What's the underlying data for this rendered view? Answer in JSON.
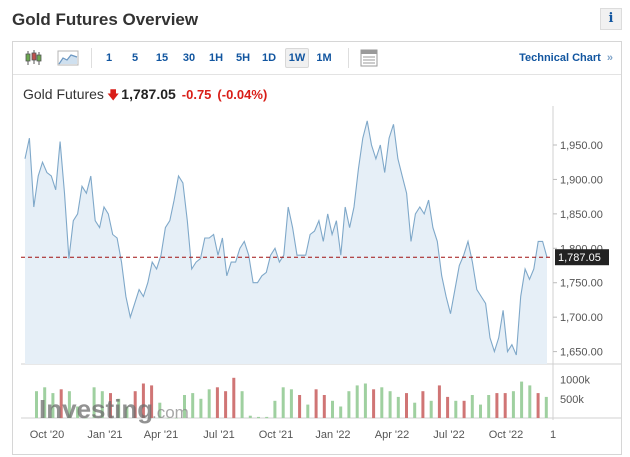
{
  "header": {
    "title": "Gold Futures Overview",
    "info_label": "i"
  },
  "toolbar": {
    "candles_icon": "candlestick-icon",
    "area_icon": "area-chart-icon",
    "intervals": [
      "1",
      "5",
      "15",
      "30",
      "1H",
      "5H",
      "1D",
      "1W",
      "1M"
    ],
    "active_interval": "1W",
    "table_icon": "table-icon",
    "technical_chart_label": "Technical Chart",
    "technical_chart_arrow": "»"
  },
  "quote": {
    "name": "Gold Futures",
    "direction_icon": "down-arrow-icon",
    "price": "1,787.05",
    "change": "-0.75",
    "change_pct": "(-0.04%)",
    "down_color": "#d91e18"
  },
  "chart_data": {
    "type": "area",
    "y_ticks": [
      "1,950.00",
      "1,900.00",
      "1,850.00",
      "1,800.00",
      "1,750.00",
      "1,700.00",
      "1,650.00"
    ],
    "y_tick_values": [
      1950,
      1900,
      1850,
      1800,
      1750,
      1700,
      1650
    ],
    "ylim": [
      1632,
      1995
    ],
    "last_price": 1787.05,
    "last_price_label": "1,787.05",
    "x_tick_labels": [
      "Oct '20",
      "Jan '21",
      "Apr '21",
      "Jul '21",
      "Oct '21",
      "Jan '22",
      "Apr '22",
      "Jul '22",
      "Oct '22",
      "1"
    ],
    "line_color": "#7fa8c9",
    "fill_color": "#e6eff7",
    "values": [
      1930,
      1960,
      1860,
      1905,
      1925,
      1910,
      1905,
      1885,
      1955,
      1880,
      1785,
      1840,
      1850,
      1890,
      1880,
      1905,
      1840,
      1830,
      1860,
      1850,
      1820,
      1815,
      1780,
      1730,
      1700,
      1720,
      1740,
      1730,
      1750,
      1780,
      1770,
      1790,
      1830,
      1840,
      1870,
      1905,
      1895,
      1840,
      1770,
      1780,
      1785,
      1815,
      1815,
      1820,
      1790,
      1815,
      1760,
      1780,
      1780,
      1800,
      1810,
      1790,
      1750,
      1750,
      1760,
      1765,
      1790,
      1800,
      1780,
      1790,
      1860,
      1830,
      1790,
      1790,
      1790,
      1820,
      1825,
      1840,
      1810,
      1850,
      1820,
      1840,
      1790,
      1860,
      1830,
      1860,
      1915,
      1960,
      1985,
      1950,
      1930,
      1950,
      1910,
      1960,
      1980,
      1930,
      1905,
      1880,
      1810,
      1850,
      1860,
      1850,
      1870,
      1830,
      1810,
      1760,
      1730,
      1705,
      1740,
      1775,
      1790,
      1810,
      1780,
      1740,
      1730,
      1720,
      1670,
      1650,
      1670,
      1710,
      1650,
      1660,
      1645,
      1730,
      1770,
      1755,
      1770,
      1810,
      1810,
      1787
    ],
    "volume_ticks": [
      "1000k",
      "500k"
    ],
    "volume_tick_values": [
      1000,
      500
    ],
    "volume_max": 1200,
    "volume": [
      {
        "v": 700,
        "c": "up"
      },
      {
        "v": 800,
        "c": "up"
      },
      {
        "v": 650,
        "c": "up"
      },
      {
        "v": 750,
        "c": "down"
      },
      {
        "v": 700,
        "c": "up"
      },
      {
        "v": 300,
        "c": "up"
      },
      {
        "v": 0,
        "c": "up"
      },
      {
        "v": 800,
        "c": "up"
      },
      {
        "v": 700,
        "c": "up"
      },
      {
        "v": 650,
        "c": "down"
      },
      {
        "v": 500,
        "c": "up"
      },
      {
        "v": 300,
        "c": "up"
      },
      {
        "v": 700,
        "c": "down"
      },
      {
        "v": 900,
        "c": "down"
      },
      {
        "v": 850,
        "c": "down"
      },
      {
        "v": 400,
        "c": "up"
      },
      {
        "v": 0,
        "c": "up"
      },
      {
        "v": 0,
        "c": "up"
      },
      {
        "v": 600,
        "c": "up"
      },
      {
        "v": 650,
        "c": "up"
      },
      {
        "v": 500,
        "c": "up"
      },
      {
        "v": 750,
        "c": "up"
      },
      {
        "v": 800,
        "c": "down"
      },
      {
        "v": 700,
        "c": "down"
      },
      {
        "v": 1050,
        "c": "down"
      },
      {
        "v": 700,
        "c": "up"
      },
      {
        "v": 60,
        "c": "up"
      },
      {
        "v": 30,
        "c": "up"
      },
      {
        "v": 30,
        "c": "up"
      },
      {
        "v": 450,
        "c": "up"
      },
      {
        "v": 800,
        "c": "up"
      },
      {
        "v": 750,
        "c": "up"
      },
      {
        "v": 600,
        "c": "down"
      },
      {
        "v": 350,
        "c": "up"
      },
      {
        "v": 750,
        "c": "down"
      },
      {
        "v": 600,
        "c": "down"
      },
      {
        "v": 450,
        "c": "up"
      },
      {
        "v": 300,
        "c": "up"
      },
      {
        "v": 700,
        "c": "up"
      },
      {
        "v": 850,
        "c": "up"
      },
      {
        "v": 900,
        "c": "up"
      },
      {
        "v": 750,
        "c": "down"
      },
      {
        "v": 800,
        "c": "up"
      },
      {
        "v": 700,
        "c": "up"
      },
      {
        "v": 550,
        "c": "up"
      },
      {
        "v": 650,
        "c": "down"
      },
      {
        "v": 400,
        "c": "up"
      },
      {
        "v": 700,
        "c": "down"
      },
      {
        "v": 450,
        "c": "up"
      },
      {
        "v": 850,
        "c": "down"
      },
      {
        "v": 550,
        "c": "down"
      },
      {
        "v": 450,
        "c": "up"
      },
      {
        "v": 450,
        "c": "down"
      },
      {
        "v": 600,
        "c": "up"
      },
      {
        "v": 350,
        "c": "up"
      },
      {
        "v": 600,
        "c": "up"
      },
      {
        "v": 650,
        "c": "down"
      },
      {
        "v": 650,
        "c": "down"
      },
      {
        "v": 700,
        "c": "up"
      },
      {
        "v": 950,
        "c": "up"
      },
      {
        "v": 850,
        "c": "up"
      },
      {
        "v": 650,
        "c": "down"
      },
      {
        "v": 550,
        "c": "up"
      }
    ],
    "volume_up_color": "#9fd0a0",
    "volume_down_color": "#d07575"
  },
  "watermark": {
    "brand": "Investing",
    "suffix": ".com"
  }
}
